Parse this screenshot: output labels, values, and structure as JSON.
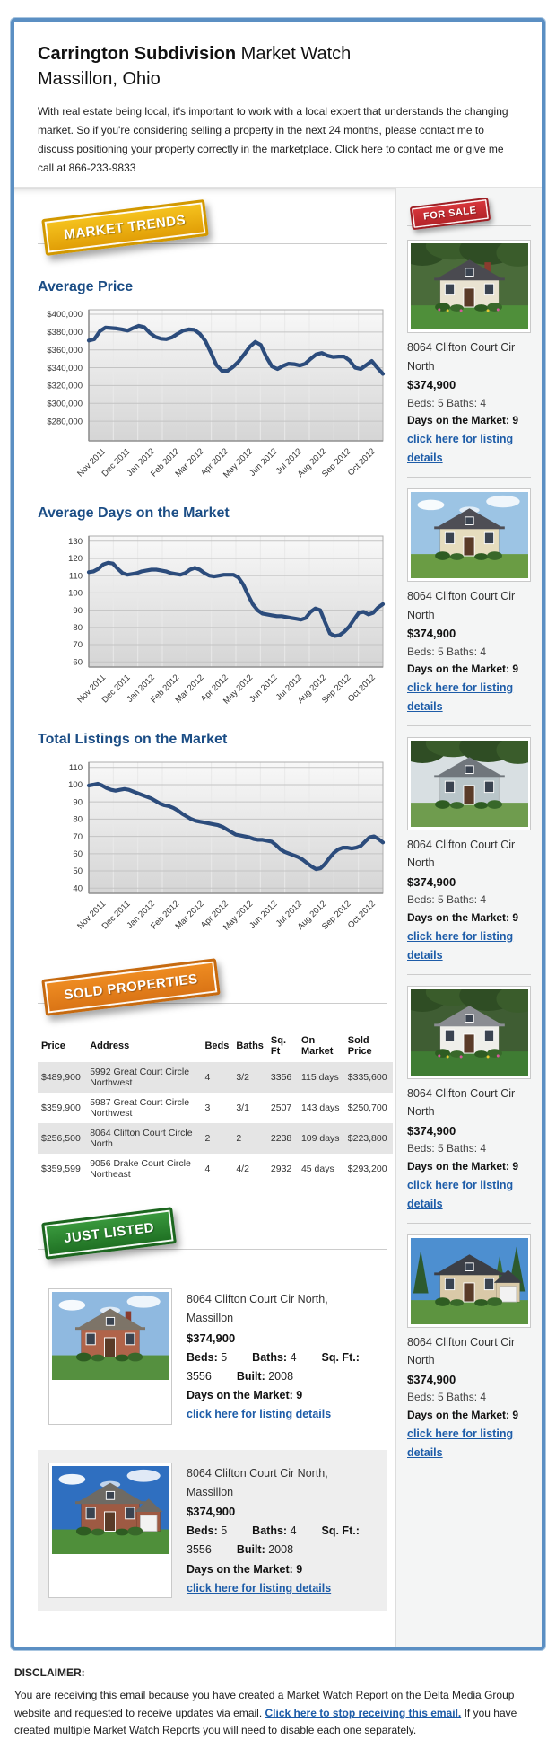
{
  "header": {
    "title_bold": "Carrington Subdivision",
    "title_rest": " Market Watch",
    "subtitle": "Massillon, Ohio",
    "intro": "With real estate being local, it's important to work with a local expert that understands the changing market. So if you're considering selling a property in the next 24 months, please contact me to discuss positioning your property correctly in the marketplace. Click here to contact me or give me call at 866-233-9833"
  },
  "badges": {
    "market_trends": "MARKET TRENDS",
    "for_sale": "FOR SALE",
    "sold_properties": "SOLD PROPERTIES",
    "just_listed": "JUST LISTED"
  },
  "chart_data": [
    {
      "type": "line",
      "title": "Average Price",
      "x_labels": [
        "Nov 2011",
        "Dec 2011",
        "Jan 2012",
        "Feb 2012",
        "Mar 2012",
        "Apr 2012",
        "May 2012",
        "Jun 2012",
        "Jul 2012",
        "Aug 2012",
        "Sep 2012",
        "Oct 2012"
      ],
      "values": [
        370500,
        372000,
        381000,
        385000,
        384500,
        384000,
        383000,
        381500,
        384500,
        387000,
        385500,
        379000,
        374500,
        372500,
        372000,
        374000,
        378000,
        381500,
        383000,
        382500,
        378000,
        370000,
        357000,
        343000,
        336500,
        336500,
        341000,
        347000,
        355000,
        363500,
        369000,
        365500,
        352000,
        341500,
        338500,
        342000,
        344500,
        344000,
        342500,
        344500,
        350000,
        355000,
        356500,
        353500,
        352000,
        352500,
        352500,
        348000,
        340000,
        338500,
        343000,
        347500,
        340000,
        333000
      ],
      "ylim": [
        258000,
        405000
      ],
      "yticks": [
        280000,
        300000,
        320000,
        340000,
        360000,
        380000,
        400000
      ],
      "y_format": "usd",
      "line_color": "#2c4c7c",
      "grid": true,
      "legend": "none"
    },
    {
      "type": "line",
      "title": "Average Days on the Market",
      "x_labels": [
        "Nov 2011",
        "Dec 2011",
        "Jan 2012",
        "Feb 2012",
        "Mar 2012",
        "Apr 2012",
        "May 2012",
        "Jun 2012",
        "Jul 2012",
        "Aug 2012",
        "Sep 2012",
        "Oct 2012"
      ],
      "values": [
        112,
        112.5,
        114,
        116.5,
        117.5,
        117,
        114,
        111.5,
        110.5,
        111,
        111.5,
        112.5,
        113,
        113.5,
        113.5,
        113,
        112.5,
        111.5,
        111,
        110.5,
        111.5,
        113.5,
        114.5,
        113.5,
        111.5,
        110,
        109.5,
        110,
        110.5,
        110.5,
        110.5,
        109,
        105,
        99,
        93.5,
        90,
        88,
        87.5,
        87,
        86.5,
        86.5,
        86,
        85.5,
        85,
        84.5,
        85.5,
        89,
        91,
        90,
        83,
        76.5,
        75,
        75.5,
        77.5,
        80.5,
        84.5,
        88.5,
        89,
        87.5,
        88.5,
        91.5,
        93.5
      ],
      "ylim": [
        57,
        133
      ],
      "yticks": [
        60,
        70,
        80,
        90,
        100,
        110,
        120,
        130
      ],
      "y_format": "number",
      "line_color": "#2c4c7c",
      "grid": true,
      "legend": "none"
    },
    {
      "type": "line",
      "title": "Total Listings on the Market",
      "x_labels": [
        "Nov 2011",
        "Dec 2011",
        "Jan 2012",
        "Feb 2012",
        "Mar 2012",
        "Apr 2012",
        "May 2012",
        "Jun 2012",
        "Jul 2012",
        "Aug 2012",
        "Sep 2012",
        "Oct 2012"
      ],
      "values": [
        99.5,
        100,
        100.5,
        99.5,
        98,
        97,
        96.5,
        97,
        97.5,
        97,
        96,
        95,
        94,
        93,
        92,
        90.5,
        89,
        88,
        87.5,
        86.5,
        85,
        83,
        81.5,
        80,
        79,
        78.5,
        78,
        77.5,
        77,
        76.5,
        75.5,
        74,
        72.5,
        71,
        70.5,
        70,
        69.5,
        68.5,
        68,
        68,
        67.5,
        67,
        65,
        62.5,
        61,
        60,
        59,
        58,
        56.5,
        54.5,
        52.5,
        51,
        51.5,
        54,
        57.5,
        60.5,
        62.5,
        63.5,
        63.5,
        63,
        63.5,
        64.5,
        67,
        69.5,
        70,
        68.5,
        66.5
      ],
      "ylim": [
        37,
        113
      ],
      "yticks": [
        40,
        50,
        60,
        70,
        80,
        90,
        100,
        110
      ],
      "y_format": "number",
      "line_color": "#2c4c7c",
      "grid": true,
      "legend": "none"
    }
  ],
  "sidebar": {
    "listings": [
      {
        "address": "8064 Clifton Court Cir North",
        "price": "$374,900",
        "bedbath": "Beds: 5 Baths: 4",
        "days": "Days on the Market: 9",
        "link": "click here for listing details",
        "photo": {
          "sky": "#4a6b3a",
          "foliage": true,
          "wall": "#e9e3d1",
          "roof": "#4a4a50",
          "grass": "#4f8f3a",
          "flowers": true,
          "chimney": true
        }
      },
      {
        "address": "8064 Clifton Court Cir North",
        "price": "$374,900",
        "bedbath": "Beds: 5 Baths: 4",
        "days": "Days on the Market: 9",
        "link": "click here for listing details",
        "photo": {
          "sky": "#9cc4e4",
          "wall": "#e6ddbe",
          "roof": "#4e4e55",
          "grass": "#6a9c44",
          "clouds": true
        }
      },
      {
        "address": "8064 Clifton Court Cir North",
        "price": "$374,900",
        "bedbath": "Beds: 5 Baths: 4",
        "days": "Days on the Market: 9",
        "link": "click here for listing details",
        "photo": {
          "sky": "#d8dfe2",
          "wall": "#b9c5c9",
          "roof": "#70767c",
          "grass": "#6f9c4e",
          "foliage": true
        }
      },
      {
        "address": "8064 Clifton Court Cir North",
        "price": "$374,900",
        "bedbath": "Beds: 5 Baths: 4",
        "days": "Days on the Market: 9",
        "link": "click here for listing details",
        "photo": {
          "sky": "#3f5d33",
          "foliage": true,
          "wall": "#efefea",
          "roof": "#8a8d92",
          "grass": "#3f7c33",
          "flowers": true
        }
      },
      {
        "address": "8064 Clifton Court Cir North",
        "price": "$374,900",
        "bedbath": "Beds: 5 Baths: 4",
        "days": "Days on the Market: 9",
        "link": "click here for listing details",
        "photo": {
          "sky": "#4d8fd0",
          "pines": true,
          "wall": "#d9c9a8",
          "roof": "#3c3f46",
          "grass": "#5d9440",
          "garage": true
        }
      }
    ]
  },
  "sold_table": {
    "headers": [
      "Price",
      "Address",
      "Beds",
      "Baths",
      "Sq. Ft",
      "On Market",
      "Sold Price"
    ],
    "rows": [
      [
        "$489,900",
        "5992 Great Court Circle Northwest",
        "4",
        "3/2",
        "3356",
        "115 days",
        "$335,600"
      ],
      [
        "$359,900",
        "5987 Great Court Circle Northwest",
        "3",
        "3/1",
        "2507",
        "143 days",
        "$250,700"
      ],
      [
        "$256,500",
        "8064 Clifton Court Circle North",
        "2",
        "2",
        "2238",
        "109 days",
        "$223,800"
      ],
      [
        "$359,599",
        "9056 Drake Court Circle Northeast",
        "4",
        "4/2",
        "2932",
        "45 days",
        "$293,200"
      ]
    ]
  },
  "just_listed": {
    "items": [
      {
        "address": "8064 Clifton Court Cir North, Massillon",
        "price": "$374,900",
        "specs": [
          {
            "k": "Beds:",
            "v": "5"
          },
          {
            "k": "Baths:",
            "v": "4"
          },
          {
            "k": "Sq. Ft.:",
            "v": "3556"
          },
          {
            "k": "Built:",
            "v": "2008"
          }
        ],
        "days": "Days on the Market: 9",
        "link": "click here for listing details",
        "photo": {
          "sky": "#8fb9e0",
          "clouds": true,
          "wall": "#b0644a",
          "roof": "#7d7468",
          "grass": "#55903f",
          "chimney": true
        }
      },
      {
        "address": "8064 Clifton Court Cir North, Massillon",
        "price": "$374,900",
        "specs": [
          {
            "k": "Beds:",
            "v": "5"
          },
          {
            "k": "Baths:",
            "v": "4"
          },
          {
            "k": "Sq. Ft.:",
            "v": "3556"
          },
          {
            "k": "Built:",
            "v": "2008"
          }
        ],
        "days": "Days on the Market: 9",
        "link": "click here for listing details",
        "photo": {
          "sky": "#2f6fc0",
          "clouds": true,
          "wall": "#9e5a43",
          "roof": "#6e6a64",
          "grass": "#4f8f3a",
          "garage": true
        }
      }
    ]
  },
  "footer": {
    "heading": "DISCLAIMER:",
    "text_before": "You are receiving this email because you have created a Market Watch Report on the Delta Media Group website and requested to receive updates via email. ",
    "link": "Click here to stop receiving this email.",
    "text_after": " If you have created multiple Market Watch Reports you will need to disable each one separately."
  },
  "colors": {
    "frame_border": "#5b8fc3",
    "heading_blue": "#1b4d85",
    "chart_line": "#2c4c7c",
    "ribbon_gold": "#e8a80a",
    "ribbon_red": "#c42a2f",
    "ribbon_orange": "#e07d1b",
    "ribbon_green": "#2d7d31",
    "link_blue": "#1d5ca8"
  }
}
